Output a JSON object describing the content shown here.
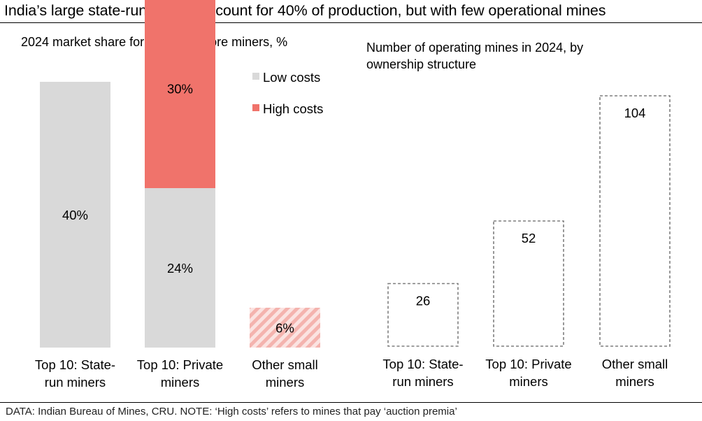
{
  "title": "India’s large state-run miners account for 40% of production, but with few operational mines",
  "footer": "DATA: Indian Bureau of Mines, CRU. NOTE: ‘High costs’ refers to mines that pay ‘auction premia’",
  "colors": {
    "low": "#d9d9d9",
    "high": "#f0736b",
    "hatch": "#f4b3ae",
    "outline": "#7f7f7f"
  },
  "chart_data": [
    {
      "type": "bar",
      "stacked": true,
      "title": "2024 market share for Indian iron ore miners, %",
      "categories": [
        [
          "Top 10: State-",
          "run miners"
        ],
        [
          "Top 10: Private",
          "miners"
        ],
        [
          "Other small",
          "miners"
        ]
      ],
      "series": [
        {
          "name": "Low costs",
          "values": [
            40,
            24,
            null
          ],
          "labels": [
            "40%",
            "24%",
            ""
          ]
        },
        {
          "name": "High costs",
          "values": [
            null,
            30,
            null
          ],
          "labels": [
            "",
            "30%",
            ""
          ]
        },
        {
          "name": "",
          "values": [
            null,
            null,
            6
          ],
          "labels": [
            "",
            "",
            "6%"
          ],
          "style": "hatched"
        }
      ],
      "ylim": [
        0,
        54
      ],
      "legend": "top-right"
    },
    {
      "type": "bar",
      "title": "Number of operating mines in 2024, by ownership structure",
      "title_lines": [
        "Number of operating mines in 2024, by",
        "ownership structure"
      ],
      "categories": [
        [
          "Top 10: State-",
          "run miners"
        ],
        [
          "Top 10: Private",
          "miners"
        ],
        [
          "Other small",
          "miners"
        ]
      ],
      "values": [
        26,
        52,
        104
      ],
      "labels": [
        "26",
        "52",
        "104"
      ],
      "style": "dashed-outline",
      "ylim": [
        0,
        104
      ]
    }
  ]
}
